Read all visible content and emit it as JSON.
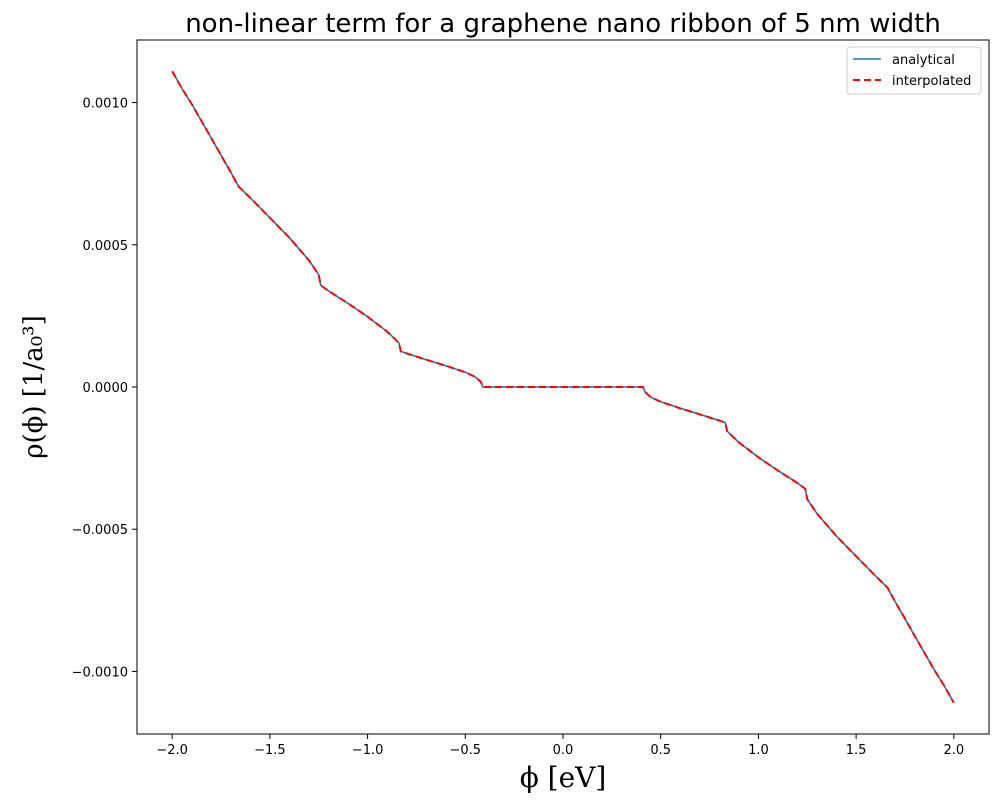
{
  "chart_data": {
    "type": "line",
    "title": "non-linear term for a graphene nano ribbon of 5 nm width",
    "xlabel": "ϕ [eV]",
    "ylabel": "ρ(ϕ) [1/a₀³]",
    "xlim": [
      -2.18,
      2.18
    ],
    "ylim": [
      -0.00122,
      0.00122
    ],
    "x_ticks": [
      -2.0,
      -1.5,
      -1.0,
      -0.5,
      0.0,
      0.5,
      1.0,
      1.5,
      2.0
    ],
    "x_tick_labels": [
      "−2.0",
      "−1.5",
      "−1.0",
      "−0.5",
      "0.0",
      "0.5",
      "1.0",
      "1.5",
      "2.0"
    ],
    "y_ticks": [
      0.001,
      0.0005,
      0.0,
      -0.0005,
      -0.001
    ],
    "y_tick_labels": [
      "0.0010",
      "0.0005",
      "0.0000",
      "−0.0005",
      "−0.0010"
    ],
    "grid": false,
    "legend_position": "top-right",
    "series": [
      {
        "name": "analytical",
        "color": "#1f77b4",
        "line_style": "solid",
        "x": [
          -2.0,
          -1.95,
          -1.9,
          -1.85,
          -1.8,
          -1.75,
          -1.7,
          -1.66,
          -1.6,
          -1.5,
          -1.4,
          -1.3,
          -1.25,
          -1.24,
          -1.2,
          -1.1,
          -1.0,
          -0.9,
          -0.84,
          -0.83,
          -0.8,
          -0.7,
          -0.6,
          -0.5,
          -0.45,
          -0.42,
          -0.41,
          -0.2,
          0.0,
          0.2,
          0.41,
          0.42,
          0.45,
          0.5,
          0.6,
          0.7,
          0.8,
          0.83,
          0.84,
          0.9,
          1.0,
          1.1,
          1.2,
          1.24,
          1.25,
          1.3,
          1.4,
          1.5,
          1.6,
          1.66,
          1.7,
          1.75,
          1.8,
          1.85,
          1.9,
          1.95,
          2.0
        ],
        "y": [
          0.00111,
          0.00105,
          0.000995,
          0.000935,
          0.000875,
          0.000815,
          0.000755,
          0.000705,
          0.000665,
          0.000595,
          0.000525,
          0.000445,
          0.000395,
          0.000358,
          0.000338,
          0.000294,
          0.000247,
          0.000195,
          0.000155,
          0.000125,
          0.000118,
          9.6e-05,
          7.5e-05,
          5.2e-05,
          3.6e-05,
          1.8e-05,
          0.0,
          0.0,
          0.0,
          0.0,
          0.0,
          -1.8e-05,
          -3.6e-05,
          -5.2e-05,
          -7.5e-05,
          -9.6e-05,
          -0.000118,
          -0.000125,
          -0.000155,
          -0.000195,
          -0.000247,
          -0.000294,
          -0.000338,
          -0.000358,
          -0.000395,
          -0.000445,
          -0.000525,
          -0.000595,
          -0.000665,
          -0.000705,
          -0.000755,
          -0.000815,
          -0.000875,
          -0.000935,
          -0.000995,
          -0.00105,
          -0.00111
        ]
      },
      {
        "name": "interpolated",
        "color": "#ff0000",
        "line_style": "dashed",
        "x": [
          -2.0,
          -1.95,
          -1.9,
          -1.85,
          -1.8,
          -1.75,
          -1.7,
          -1.66,
          -1.6,
          -1.5,
          -1.4,
          -1.3,
          -1.25,
          -1.24,
          -1.2,
          -1.1,
          -1.0,
          -0.9,
          -0.84,
          -0.83,
          -0.8,
          -0.7,
          -0.6,
          -0.5,
          -0.45,
          -0.42,
          -0.41,
          -0.2,
          0.0,
          0.2,
          0.41,
          0.42,
          0.45,
          0.5,
          0.6,
          0.7,
          0.8,
          0.83,
          0.84,
          0.9,
          1.0,
          1.1,
          1.2,
          1.24,
          1.25,
          1.3,
          1.4,
          1.5,
          1.6,
          1.66,
          1.7,
          1.75,
          1.8,
          1.85,
          1.9,
          1.95,
          2.0
        ],
        "y": [
          0.00111,
          0.00105,
          0.000995,
          0.000935,
          0.000875,
          0.000815,
          0.000755,
          0.000705,
          0.000665,
          0.000595,
          0.000525,
          0.000445,
          0.000395,
          0.000358,
          0.000338,
          0.000294,
          0.000247,
          0.000195,
          0.000155,
          0.000125,
          0.000118,
          9.6e-05,
          7.5e-05,
          5.2e-05,
          3.6e-05,
          1.8e-05,
          0.0,
          0.0,
          0.0,
          0.0,
          0.0,
          -1.8e-05,
          -3.6e-05,
          -5.2e-05,
          -7.5e-05,
          -9.6e-05,
          -0.000118,
          -0.000125,
          -0.000155,
          -0.000195,
          -0.000247,
          -0.000294,
          -0.000338,
          -0.000358,
          -0.000395,
          -0.000445,
          -0.000525,
          -0.000595,
          -0.000665,
          -0.000705,
          -0.000755,
          -0.000815,
          -0.000875,
          -0.000935,
          -0.000995,
          -0.00105,
          -0.00111
        ]
      }
    ]
  }
}
